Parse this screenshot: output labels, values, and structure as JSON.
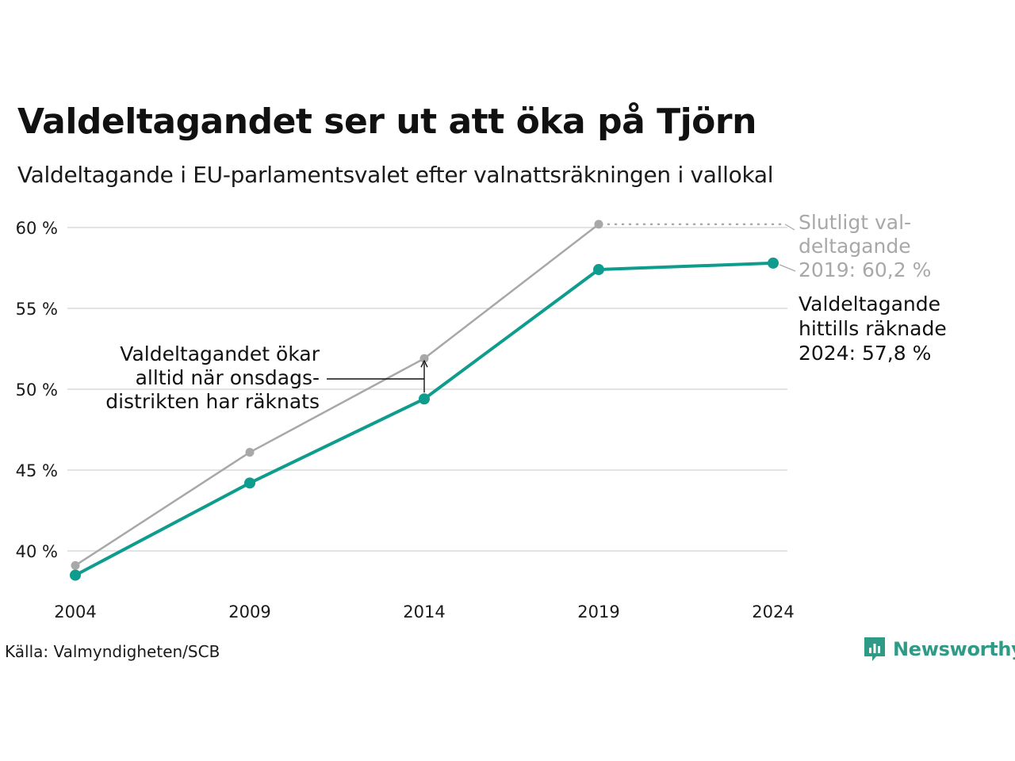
{
  "title": "Valdeltagandet ser ut att öka på Tjörn",
  "subtitle": "Valdeltagande i EU-parlamentsvalet efter valnattsräkningen i vallokal",
  "source": "Källa: Valmyndigheten/SCB",
  "brand": {
    "name": "Newsworthy",
    "icon": "newsworthy-logo-icon"
  },
  "colors": {
    "final": "#a8a8a8",
    "counted": "#0e9c8e",
    "grid": "#e3e3e3",
    "text": "#1a1a1a",
    "brand": "#2f9b86"
  },
  "chart_data": {
    "type": "line",
    "x": [
      2004,
      2009,
      2014,
      2019,
      2024
    ],
    "ylim": [
      37.5,
      61
    ],
    "yticks": [
      40,
      45,
      50,
      55,
      60
    ],
    "ytick_labels": [
      "40 %",
      "45 %",
      "50 %",
      "55 %",
      "60 %"
    ],
    "xtick_labels": [
      "2004",
      "2009",
      "2014",
      "2019",
      "2024"
    ],
    "grid": true,
    "series": [
      {
        "key": "final",
        "values": [
          39.1,
          46.1,
          51.9,
          60.2,
          null
        ]
      },
      {
        "key": "counted",
        "values": [
          38.5,
          44.2,
          49.4,
          57.4,
          57.8
        ]
      }
    ],
    "annotations": {
      "final_label": [
        "Slutligt val-",
        "deltagande",
        "2019: 60,2 %"
      ],
      "counted_label": [
        "Valdeltagande",
        "hittills räknade",
        "2024: 57,8 %"
      ],
      "note": [
        "Valdeltagandet ökar",
        "alltid när onsdags-",
        "distrikten har räknats"
      ]
    }
  }
}
